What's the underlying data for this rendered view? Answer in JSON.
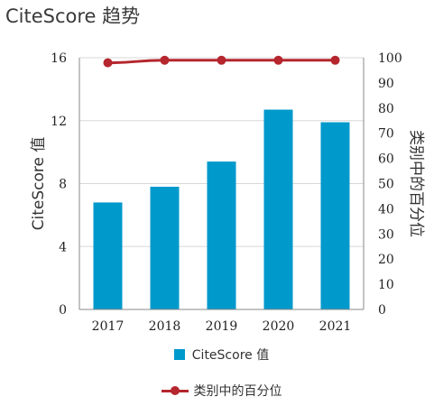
{
  "title": "CiteScore 趋势",
  "colors": {
    "bar": "#0099cc",
    "line": "#b5262e",
    "grid": "#d8d8d8",
    "axis": "#888888"
  },
  "chart_data": {
    "type": "bar",
    "categories": [
      "2017",
      "2018",
      "2019",
      "2020",
      "2021"
    ],
    "ylabel": "CiteScore 值",
    "y2label": "类别中的百分位",
    "ylim": [
      0,
      16
    ],
    "y2lim": [
      0,
      100
    ],
    "yticks": [
      0,
      4,
      8,
      12,
      16
    ],
    "y2ticks": [
      0,
      10,
      20,
      30,
      40,
      50,
      60,
      70,
      80,
      90,
      100
    ],
    "grid": true,
    "legend_position": "bottom",
    "series": [
      {
        "name": "CiteScore 值",
        "type": "bar",
        "axis": "left",
        "values": [
          6.8,
          7.8,
          9.4,
          12.7,
          11.9
        ]
      },
      {
        "name": "类别中的百分位",
        "type": "line",
        "axis": "right",
        "values": [
          98,
          99,
          99,
          99,
          99
        ]
      }
    ]
  }
}
